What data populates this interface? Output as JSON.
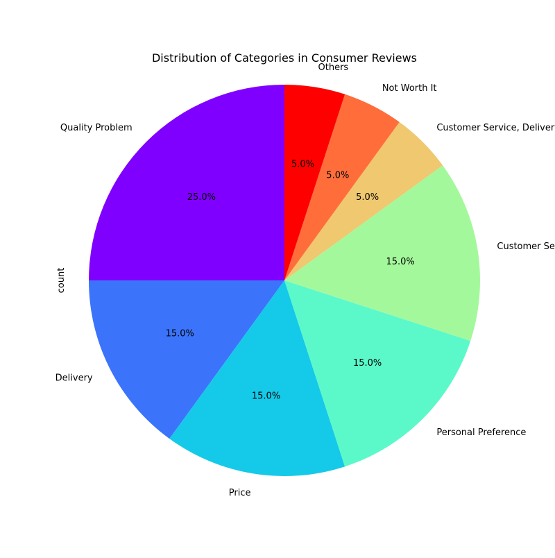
{
  "chart_data": {
    "type": "pie",
    "title": "Distribution of Categories in Consumer Reviews",
    "ylabel": "count",
    "start_angle_deg": 90,
    "direction": "counterclockwise",
    "legend": "none",
    "slices": [
      {
        "label": "Quality Problem",
        "value": 25.0,
        "pct_label": "25.0%",
        "color": "#8000ff"
      },
      {
        "label": "Delivery",
        "value": 15.0,
        "pct_label": "15.0%",
        "color": "#3b74fb"
      },
      {
        "label": "Price",
        "value": 15.0,
        "pct_label": "15.0%",
        "color": "#15c9e8"
      },
      {
        "label": "Personal Preference",
        "value": 15.0,
        "pct_label": "15.0%",
        "color": "#5bf9ca"
      },
      {
        "label": "Customer Service",
        "value": 15.0,
        "pct_label": "15.0%",
        "color": "#a4f89c"
      },
      {
        "label": "Customer Service, Delivery",
        "value": 5.0,
        "pct_label": "5.0%",
        "color": "#efc86f"
      },
      {
        "label": "Not Worth It",
        "value": 5.0,
        "pct_label": "5.0%",
        "color": "#ff6d3b"
      },
      {
        "label": "Others",
        "value": 5.0,
        "pct_label": "5.0%",
        "color": "#ff0000"
      }
    ]
  }
}
